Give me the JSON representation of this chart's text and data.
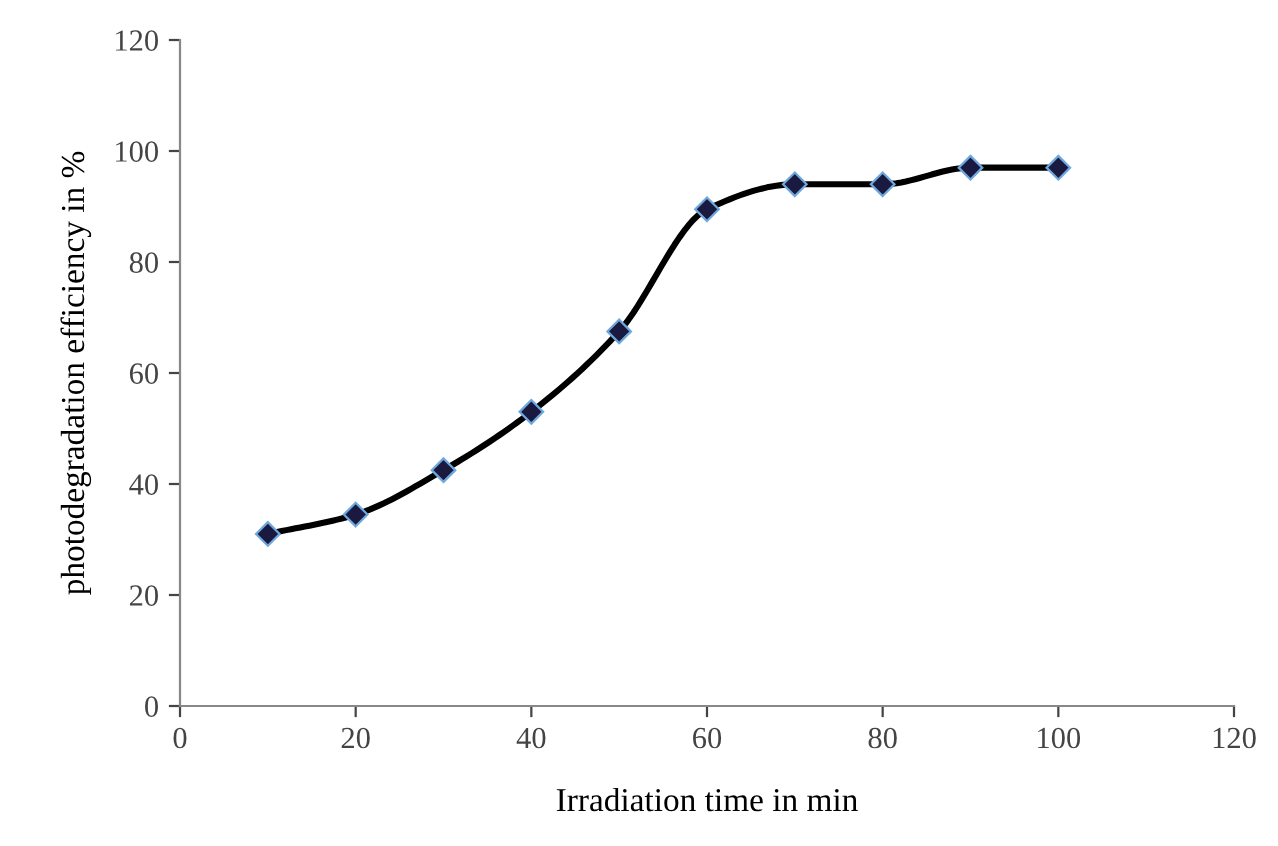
{
  "chart_data": {
    "type": "line",
    "xlabel": "Irradiation time in min",
    "ylabel": "photodegradation efficiency in %",
    "x": [
      10,
      20,
      30,
      40,
      50,
      60,
      70,
      80,
      90,
      100
    ],
    "series": [
      {
        "color": "#000000",
        "values": [
          31,
          34.5,
          42.5,
          53,
          67.5,
          89.5,
          94,
          94,
          97,
          97
        ]
      }
    ],
    "xlim": [
      0,
      120
    ],
    "xticks": [
      0,
      20,
      40,
      60,
      80,
      100,
      120
    ],
    "ylim": [
      0,
      120
    ],
    "yticks": [
      0,
      20,
      40,
      60,
      80,
      100,
      120
    ],
    "grid": false,
    "marker": "diamond",
    "line_style": "solid"
  }
}
